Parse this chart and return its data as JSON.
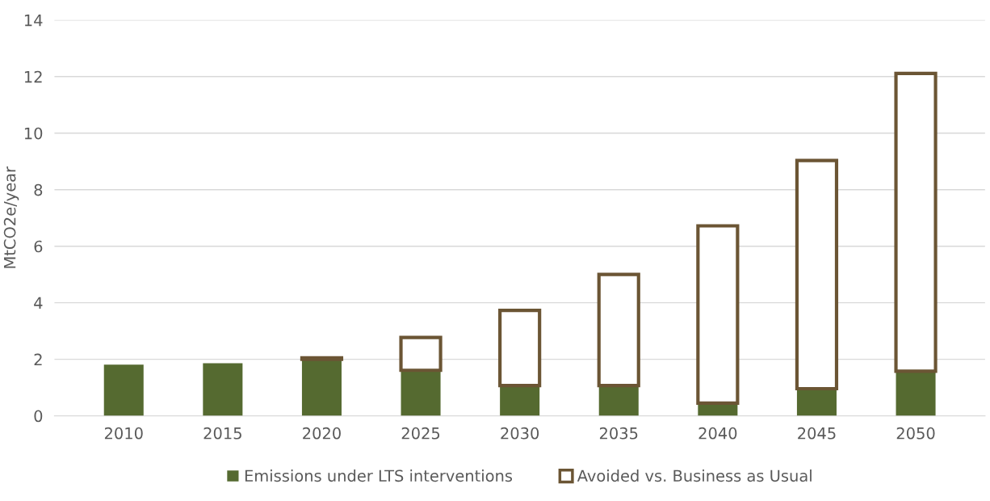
{
  "chart_data": {
    "type": "bar",
    "stacked": true,
    "ylabel": "MtCO2e/year",
    "categories": [
      "2010",
      "2015",
      "2020",
      "2025",
      "2030",
      "2035",
      "2040",
      "2045",
      "2050"
    ],
    "series": [
      {
        "name": "Emissions under LTS interventions",
        "color": "#556a30",
        "values": [
          1.81,
          1.86,
          2.0,
          1.61,
          1.07,
          1.07,
          0.45,
          0.96,
          1.58
        ]
      },
      {
        "name": "Avoided vs. Business as Usual",
        "color": "#6b5534",
        "values": [
          null,
          null,
          0.05,
          1.16,
          2.66,
          3.93,
          6.27,
          8.07,
          10.53
        ]
      }
    ],
    "ylim": [
      0,
      14
    ],
    "yticks": [
      0,
      2,
      4,
      6,
      8,
      10,
      12,
      14
    ],
    "grid": "y",
    "legend": "bottom"
  }
}
